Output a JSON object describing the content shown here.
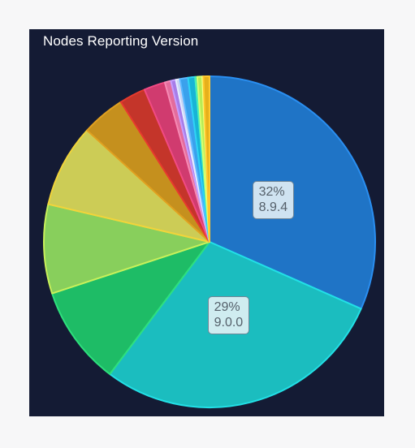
{
  "card": {
    "title": "Nodes Reporting Version"
  },
  "chart_data": {
    "type": "pie",
    "title": "Nodes Reporting Version",
    "start_angle_deg": 0,
    "direction": "clockwise",
    "slices": [
      {
        "label": "8.9.4",
        "value": 32,
        "show_label": true,
        "color": "#1f74c6",
        "stroke": "#2a8ef0"
      },
      {
        "label": "9.0.0",
        "value": 29,
        "show_label": true,
        "color": "#1bbdbf",
        "stroke": "#22e0e6"
      },
      {
        "label": "",
        "value": 9.8,
        "show_label": false,
        "color": "#1ebc66",
        "stroke": "#2ee07d"
      },
      {
        "label": "",
        "value": 8.8,
        "show_label": false,
        "color": "#88cf5c",
        "stroke": "#c8f05a"
      },
      {
        "label": "",
        "value": 8.2,
        "show_label": false,
        "color": "#cccc56",
        "stroke": "#f2d43a"
      },
      {
        "label": "",
        "value": 4.3,
        "show_label": false,
        "color": "#c5901e",
        "stroke": "#e0a020"
      },
      {
        "label": "",
        "value": 2.6,
        "show_label": false,
        "color": "#c4352a",
        "stroke": "#e63a2e"
      },
      {
        "label": "",
        "value": 2.1,
        "show_label": false,
        "color": "#d03b6f",
        "stroke": "#f04a84"
      },
      {
        "label": "",
        "value": 0.6,
        "show_label": false,
        "color": "#e36c9c",
        "stroke": "#f58ab3"
      },
      {
        "label": "",
        "value": 0.5,
        "show_label": false,
        "color": "#a77de8",
        "stroke": "#c49cff"
      },
      {
        "label": "",
        "value": 0.4,
        "show_label": false,
        "color": "#c7d3f3",
        "stroke": "#e4ebff"
      },
      {
        "label": "",
        "value": 0.8,
        "show_label": false,
        "color": "#3aa1ec",
        "stroke": "#5cb8ff"
      },
      {
        "label": "",
        "value": 0.7,
        "show_label": false,
        "color": "#18b4d6",
        "stroke": "#2ed3f5"
      },
      {
        "label": "",
        "value": 0.2,
        "show_label": false,
        "color": "#2cd39a",
        "stroke": "#4cf0b8"
      },
      {
        "label": "",
        "value": 0.5,
        "show_label": false,
        "color": "#b8ec55",
        "stroke": "#d8ff70"
      },
      {
        "label": "",
        "value": 0.1,
        "show_label": false,
        "color": "#e7ef5d",
        "stroke": "#f8ff80"
      },
      {
        "label": "",
        "value": 0.6,
        "show_label": false,
        "color": "#e6b01c",
        "stroke": "#ffc72e"
      }
    ]
  }
}
